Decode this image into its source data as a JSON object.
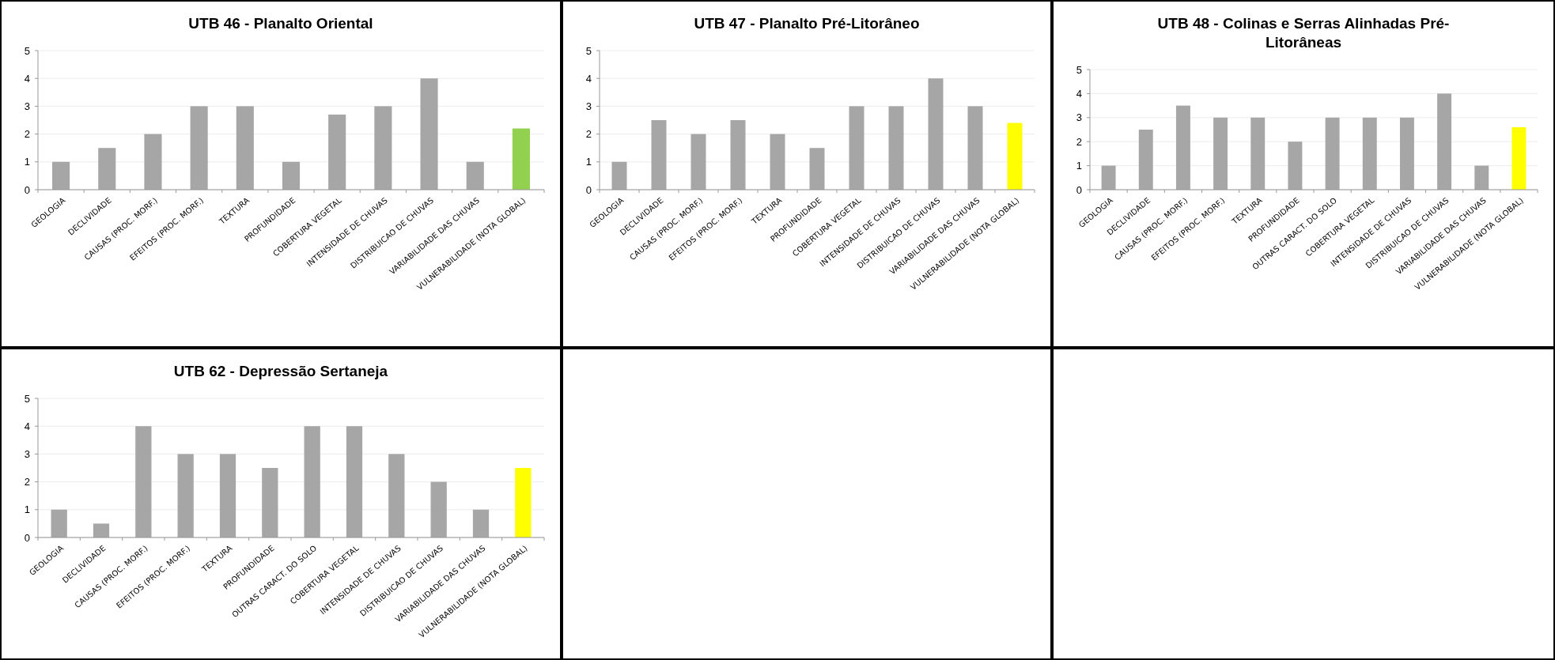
{
  "chart_data": [
    {
      "type": "bar",
      "title": "UTB 46 - Planalto Oriental",
      "categories": [
        "GEOLOGIA",
        "DECLIVIDADE",
        "CAUSAS (PROC. MORF.)",
        "EFEITOS (PROC. MORF.)",
        "TEXTURA",
        "PROFUNDIDADE",
        "COBERTURA VEGETAL",
        "INTENSIDADE DE CHUVAS",
        "DISTRIBUICAO  DE CHUVAS",
        "VARIABILIDADE DAS CHUVAS",
        "VULNERABILIDADE  (NOTA GLOBAL)"
      ],
      "values": [
        1,
        1.5,
        2,
        3,
        3,
        1,
        2.7,
        3,
        4,
        1,
        2.2
      ],
      "colors": [
        "#a6a6a6",
        "#a6a6a6",
        "#a6a6a6",
        "#a6a6a6",
        "#a6a6a6",
        "#a6a6a6",
        "#a6a6a6",
        "#a6a6a6",
        "#a6a6a6",
        "#a6a6a6",
        "#92d050"
      ],
      "ylim": [
        0,
        5
      ],
      "yticks": [
        0,
        1,
        2,
        3,
        4,
        5
      ],
      "grid": "y"
    },
    {
      "type": "bar",
      "title": "UTB 47 - Planalto Pré-Litorâneo",
      "categories": [
        "GEOLOGIA",
        "DECLIVIDADE",
        "CAUSAS (PROC. MORF.)",
        "EFEITOS (PROC. MORF.)",
        "TEXTURA",
        "PROFUNDIDADE",
        "COBERTURA VEGETAL",
        "INTENSIDADE DE CHUVAS",
        "DISTRIBUICAO  DE CHUVAS",
        "VARIABILIDADE DAS CHUVAS",
        "VULNERABILIDADE  (NOTA GLOBAL)"
      ],
      "values": [
        1,
        2.5,
        2,
        2.5,
        2,
        1.5,
        3,
        3,
        4,
        3,
        2.4
      ],
      "colors": [
        "#a6a6a6",
        "#a6a6a6",
        "#a6a6a6",
        "#a6a6a6",
        "#a6a6a6",
        "#a6a6a6",
        "#a6a6a6",
        "#a6a6a6",
        "#a6a6a6",
        "#a6a6a6",
        "#ffff00"
      ],
      "ylim": [
        0,
        5
      ],
      "yticks": [
        0,
        1,
        2,
        3,
        4,
        5
      ],
      "grid": "y"
    },
    {
      "type": "bar",
      "title": "UTB 48 - Colinas e Serras Alinhadas Pré-Litorâneas",
      "categories": [
        "GEOLOGIA",
        "DECLIVIDADE",
        "CAUSAS (PROC. MORF.)",
        "EFEITOS (PROC. MORF.)",
        "TEXTURA",
        "PROFUNDIDADE",
        "OUTRAS CARACT. DO SOLO",
        "COBERTURA VEGETAL",
        "INTENSIDADE DE CHUVAS",
        "DISTRIBUICAO  DE CHUVAS",
        "VARIABILIDADE DAS CHUVAS",
        "VULNERABILIDADE  (NOTA GLOBAL)"
      ],
      "values": [
        1,
        2.5,
        3.5,
        3,
        3,
        2,
        3,
        3,
        3,
        4,
        1,
        2.6
      ],
      "colors": [
        "#a6a6a6",
        "#a6a6a6",
        "#a6a6a6",
        "#a6a6a6",
        "#a6a6a6",
        "#a6a6a6",
        "#a6a6a6",
        "#a6a6a6",
        "#a6a6a6",
        "#a6a6a6",
        "#a6a6a6",
        "#ffff00"
      ],
      "ylim": [
        0,
        5
      ],
      "yticks": [
        0,
        1,
        2,
        3,
        4,
        5
      ],
      "grid": "y"
    },
    {
      "type": "bar",
      "title": "UTB 62 - Depressão Sertaneja",
      "categories": [
        "GEOLOGIA",
        "DECLIVIDADE",
        "CAUSAS (PROC. MORF.)",
        "EFEITOS (PROC. MORF.)",
        "TEXTURA",
        "PROFUNDIDADE",
        "OUTRAS CARACT. DO SOLO",
        "COBERTURA VEGETAL",
        "INTENSIDADE DE CHUVAS",
        "DISTRIBUICAO  DE CHUVAS",
        "VARIABILIDADE DAS CHUVAS",
        "VULNERABILIDADE  (NOTA GLOBAL)"
      ],
      "values": [
        1,
        0.5,
        4,
        3,
        3,
        2.5,
        4,
        4,
        3,
        2,
        1,
        2.5
      ],
      "colors": [
        "#a6a6a6",
        "#a6a6a6",
        "#a6a6a6",
        "#a6a6a6",
        "#a6a6a6",
        "#a6a6a6",
        "#a6a6a6",
        "#a6a6a6",
        "#a6a6a6",
        "#a6a6a6",
        "#a6a6a6",
        "#ffff00"
      ],
      "ylim": [
        0,
        5
      ],
      "yticks": [
        0,
        1,
        2,
        3,
        4,
        5
      ],
      "grid": "y"
    }
  ]
}
